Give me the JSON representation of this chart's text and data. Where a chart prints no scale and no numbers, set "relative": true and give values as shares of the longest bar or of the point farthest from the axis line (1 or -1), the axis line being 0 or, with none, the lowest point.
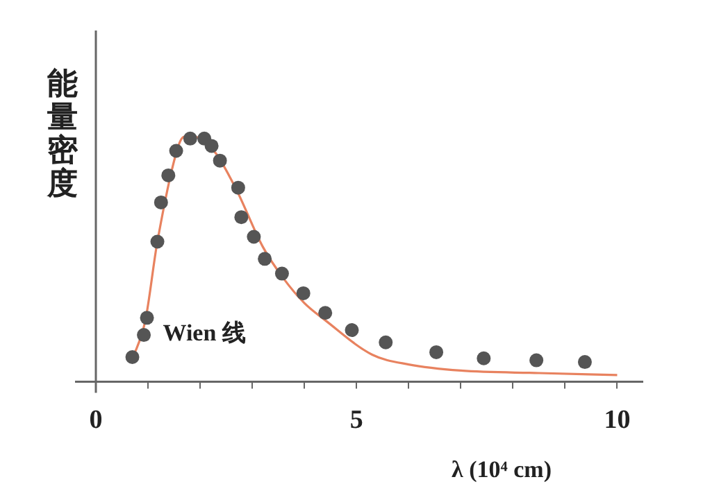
{
  "chart_data": {
    "type": "scatter",
    "relative": true,
    "ylabel": "能量密度",
    "xlabel": "λ (10⁴ cm)",
    "xlim": [
      0,
      10.5
    ],
    "xticks": [
      0,
      {
        "value": 1,
        "label": null
      },
      {
        "value": 2,
        "label": null
      },
      {
        "value": 3,
        "label": null
      },
      {
        "value": 4,
        "label": null
      },
      5,
      {
        "value": 6,
        "label": null
      },
      {
        "value": 7,
        "label": null
      },
      {
        "value": 8,
        "label": null
      },
      {
        "value": 9,
        "label": null
      },
      10
    ],
    "series": [
      {
        "marker": "circle",
        "color": "#555555",
        "x": [
          0.7,
          0.92,
          0.98,
          1.18,
          1.25,
          1.39,
          1.54,
          1.81,
          2.08,
          2.22,
          2.38,
          2.73,
          2.79,
          3.03,
          3.24,
          3.57,
          3.98,
          4.4,
          4.91,
          5.56,
          6.53,
          7.44,
          8.45,
          9.38
        ],
        "values": [
          0.1,
          0.19,
          0.26,
          0.57,
          0.73,
          0.84,
          0.94,
          0.99,
          0.99,
          0.96,
          0.9,
          0.79,
          0.67,
          0.59,
          0.5,
          0.44,
          0.36,
          0.28,
          0.21,
          0.16,
          0.12,
          0.095,
          0.087,
          0.08
        ]
      },
      {
        "type": "line",
        "name": "Wien 线",
        "marker": "none",
        "line_style": "solid",
        "color": "#e8825f",
        "x": [
          0.7,
          0.95,
          1.18,
          1.6,
          1.75,
          2.0,
          2.3,
          2.7,
          3.2,
          3.6,
          4.0,
          4.4,
          5.3,
          6.0,
          7.0,
          8.5,
          10.0
        ],
        "values": [
          0.09,
          0.25,
          0.57,
          0.97,
          1.0,
          0.99,
          0.93,
          0.78,
          0.55,
          0.42,
          0.32,
          0.25,
          0.11,
          0.07,
          0.045,
          0.035,
          0.027
        ]
      }
    ]
  }
}
